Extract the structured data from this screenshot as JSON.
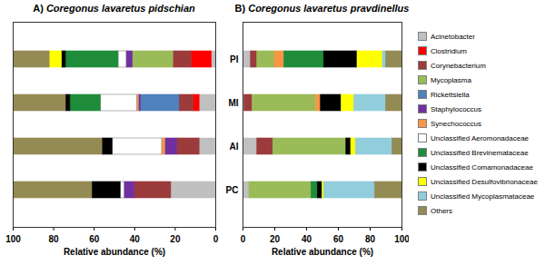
{
  "chart_data": [
    {
      "type": "bar",
      "orientation": "horizontal",
      "stacked": true,
      "title": "A) Coregonus lavaretus pidschian",
      "xlabel": "Relative abundance (%)",
      "categories": [
        "PI",
        "MI",
        "AI",
        "PC"
      ],
      "xlim": [
        100,
        0
      ],
      "xticks": [
        100,
        80,
        60,
        40,
        20,
        0
      ],
      "tick_labels": "x",
      "series": [
        {
          "name": "Acinetobacter",
          "color": "#c0c0c0",
          "values": [
            2,
            8,
            8,
            22
          ]
        },
        {
          "name": "Clostridium",
          "color": "#ff0000",
          "values": [
            10,
            3,
            0,
            0
          ]
        },
        {
          "name": "Corynebacterium",
          "color": "#9c3b3b",
          "values": [
            9,
            7,
            11,
            18
          ]
        },
        {
          "name": "Mycoplasma",
          "color": "#9bbb59",
          "values": [
            20,
            0,
            0,
            0
          ]
        },
        {
          "name": "Rickettsiella",
          "color": "#4f81bd",
          "values": [
            0,
            19,
            0,
            0
          ]
        },
        {
          "name": "Staphylococcus",
          "color": "#7030a0",
          "values": [
            3,
            1,
            6,
            5
          ]
        },
        {
          "name": "Synechococcus",
          "color": "#f79646",
          "values": [
            0,
            0.8,
            1.5,
            0
          ]
        },
        {
          "name": "Unclassified Aeromonadaceae",
          "color": "#ffffff",
          "values": [
            4,
            18,
            24.5,
            2
          ]
        },
        {
          "name": "Unclassified Brevinemataceae",
          "color": "#1e8c3a",
          "values": [
            26,
            15,
            0,
            0
          ]
        },
        {
          "name": "Unclassified Comamonadaceae",
          "color": "#000000",
          "values": [
            2,
            2.2,
            5,
            14
          ]
        },
        {
          "name": "Unclassified Desulfovibrionaceae",
          "color": "#ffff00",
          "values": [
            6,
            0,
            0,
            0
          ]
        },
        {
          "name": "Unclassified Mycoplasmataceae",
          "color": "#92cddc",
          "values": [
            0,
            0,
            0,
            0
          ]
        },
        {
          "name": "Others",
          "color": "#948a54",
          "values": [
            18,
            26,
            44,
            39
          ]
        }
      ]
    },
    {
      "type": "bar",
      "orientation": "horizontal",
      "stacked": true,
      "title": "B) Coregonus lavaretus pravdinellus",
      "xlabel": "Relative abundance (%)",
      "categories": [
        "PI",
        "MI",
        "AI",
        "PC"
      ],
      "xlim": [
        0,
        100
      ],
      "xticks": [
        0,
        20,
        40,
        60,
        80,
        100
      ],
      "legend": "right",
      "series": [
        {
          "name": "Acinetobacter",
          "color": "#c0c0c0",
          "values": [
            5,
            1,
            9,
            4
          ]
        },
        {
          "name": "Clostridium",
          "color": "#ff0000",
          "values": [
            0,
            0,
            0,
            0
          ]
        },
        {
          "name": "Corynebacterium",
          "color": "#9c3b3b",
          "values": [
            4,
            5,
            10,
            0
          ]
        },
        {
          "name": "Mycoplasma",
          "color": "#9bbb59",
          "values": [
            11,
            40,
            46,
            39
          ]
        },
        {
          "name": "Rickettsiella",
          "color": "#4f81bd",
          "values": [
            0,
            0,
            0,
            0
          ]
        },
        {
          "name": "Staphylococcus",
          "color": "#7030a0",
          "values": [
            0,
            0,
            0,
            0
          ]
        },
        {
          "name": "Synechococcus",
          "color": "#f79646",
          "values": [
            6,
            3,
            0,
            0
          ]
        },
        {
          "name": "Unclassified Aeromonadaceae",
          "color": "#ffffff",
          "values": [
            0,
            0,
            0,
            0
          ]
        },
        {
          "name": "Unclassified Brevinemataceae",
          "color": "#1e8c3a",
          "values": [
            25,
            0,
            0,
            4
          ]
        },
        {
          "name": "Unclassified Comamonadaceae",
          "color": "#000000",
          "values": [
            21,
            13,
            3,
            3
          ]
        },
        {
          "name": "Unclassified Desulfovibrionaceae",
          "color": "#ffff00",
          "values": [
            16,
            8,
            3,
            1
          ]
        },
        {
          "name": "Unclassified Mycoplasmataceae",
          "color": "#92cddc",
          "values": [
            2,
            20,
            23,
            32
          ]
        },
        {
          "name": "Others",
          "color": "#948a54",
          "values": [
            10,
            10,
            6,
            17
          ]
        }
      ]
    }
  ]
}
